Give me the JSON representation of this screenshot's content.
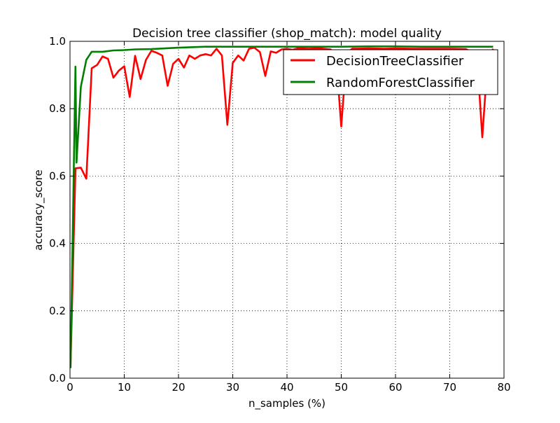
{
  "chart_data": {
    "type": "line",
    "title": "Decision tree classifier (shop_match): model quality",
    "xlabel": "n_samples (%)",
    "ylabel": "accuracy_score",
    "xlim": [
      0,
      80
    ],
    "ylim": [
      0.0,
      1.0
    ],
    "xticks": [
      0,
      10,
      20,
      30,
      40,
      50,
      60,
      70,
      80
    ],
    "yticks": [
      0.0,
      0.2,
      0.4,
      0.6,
      0.8,
      1.0
    ],
    "xtick_labels": [
      "0",
      "10",
      "20",
      "30",
      "40",
      "50",
      "60",
      "70",
      "80"
    ],
    "ytick_labels": [
      "0.0",
      "0.2",
      "0.4",
      "0.6",
      "0.8",
      "1.0"
    ],
    "grid": true,
    "legend_position": "top-right",
    "series": [
      {
        "name": "DecisionTreeClassifier",
        "color": "#ff0000",
        "points": [
          [
            0.1,
            0.04
          ],
          [
            1,
            0.623
          ],
          [
            2,
            0.625
          ],
          [
            3,
            0.592
          ],
          [
            4,
            0.92
          ],
          [
            5,
            0.93
          ],
          [
            6,
            0.955
          ],
          [
            7,
            0.948
          ],
          [
            8,
            0.892
          ],
          [
            9,
            0.913
          ],
          [
            10,
            0.926
          ],
          [
            11,
            0.835
          ],
          [
            12,
            0.957
          ],
          [
            13,
            0.888
          ],
          [
            14,
            0.945
          ],
          [
            15,
            0.972
          ],
          [
            16,
            0.966
          ],
          [
            17,
            0.958
          ],
          [
            18,
            0.868
          ],
          [
            19,
            0.933
          ],
          [
            20,
            0.948
          ],
          [
            21,
            0.922
          ],
          [
            22,
            0.958
          ],
          [
            23,
            0.948
          ],
          [
            24,
            0.958
          ],
          [
            25,
            0.962
          ],
          [
            26,
            0.958
          ],
          [
            27,
            0.978
          ],
          [
            28,
            0.958
          ],
          [
            29,
            0.752
          ],
          [
            30,
            0.936
          ],
          [
            31,
            0.958
          ],
          [
            32,
            0.943
          ],
          [
            33,
            0.978
          ],
          [
            34,
            0.981
          ],
          [
            35,
            0.968
          ],
          [
            36,
            0.897
          ],
          [
            37,
            0.97
          ],
          [
            38,
            0.966
          ],
          [
            39,
            0.976
          ],
          [
            40,
            0.978
          ],
          [
            41,
            0.975
          ],
          [
            42,
            0.979
          ],
          [
            44,
            0.978
          ],
          [
            46,
            0.979
          ],
          [
            48,
            0.976
          ],
          [
            49,
            0.965
          ],
          [
            50,
            0.747
          ],
          [
            51,
            0.965
          ],
          [
            52,
            0.978
          ],
          [
            55,
            0.979
          ],
          [
            58,
            0.978
          ],
          [
            60,
            0.979
          ],
          [
            63,
            0.978
          ],
          [
            66,
            0.978
          ],
          [
            70,
            0.978
          ],
          [
            73,
            0.977
          ],
          [
            75,
            0.96
          ],
          [
            76,
            0.715
          ],
          [
            77,
            0.95
          ],
          [
            78,
            0.978
          ]
        ]
      },
      {
        "name": "RandomForestClassifier",
        "color": "#008000",
        "points": [
          [
            0.1,
            0.03
          ],
          [
            1,
            0.925
          ],
          [
            1.2,
            0.64
          ],
          [
            2,
            0.865
          ],
          [
            3,
            0.945
          ],
          [
            4,
            0.969
          ],
          [
            6,
            0.969
          ],
          [
            8,
            0.973
          ],
          [
            10,
            0.974
          ],
          [
            12,
            0.976
          ],
          [
            15,
            0.977
          ],
          [
            20,
            0.981
          ],
          [
            25,
            0.984
          ],
          [
            30,
            0.984
          ],
          [
            35,
            0.984
          ],
          [
            40,
            0.984
          ],
          [
            50,
            0.984
          ],
          [
            55,
            0.985
          ],
          [
            60,
            0.985
          ],
          [
            65,
            0.984
          ],
          [
            70,
            0.984
          ],
          [
            75,
            0.984
          ],
          [
            78,
            0.984
          ]
        ]
      }
    ]
  }
}
